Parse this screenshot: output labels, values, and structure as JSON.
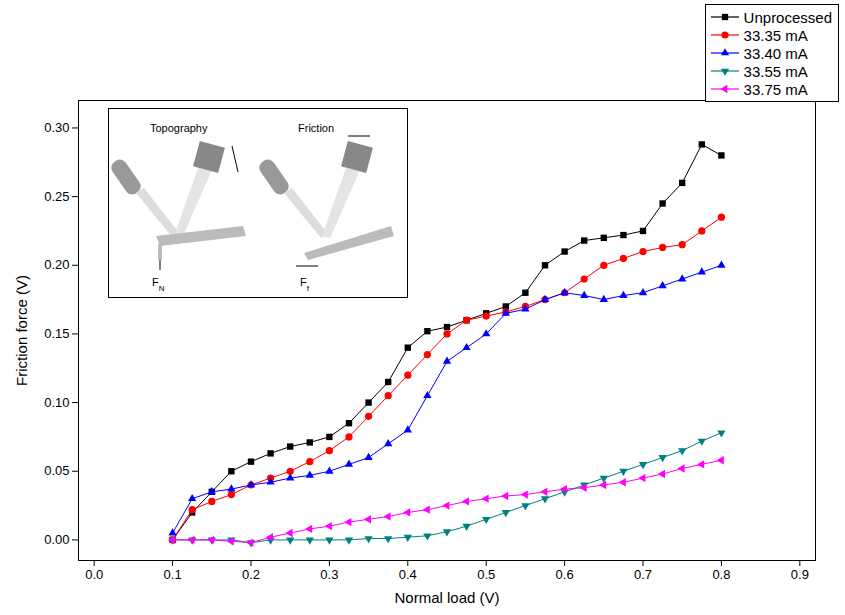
{
  "chart_data": {
    "type": "line",
    "x_label": "Normal load (V)",
    "y_label": "Friction force (V)",
    "xlim": [
      -0.02,
      0.92
    ],
    "ylim": [
      -0.015,
      0.32
    ],
    "xticks": [
      {
        "value": 0,
        "label": "0.0"
      },
      0.1,
      0.2,
      0.3,
      0.4,
      0.5,
      0.6,
      0.7,
      0.8,
      0.9
    ],
    "yticks": [
      {
        "value": 0,
        "label": "0.00"
      },
      0.05,
      {
        "value": 0.1,
        "label": "0.10"
      },
      0.15,
      {
        "value": 0.2,
        "label": "0.20"
      },
      0.25,
      {
        "value": 0.3,
        "label": "0.30"
      }
    ],
    "grid": false,
    "legend": "top-right",
    "x": [
      0.1,
      0.125,
      0.15,
      0.175,
      0.2,
      0.225,
      0.25,
      0.275,
      0.3,
      0.325,
      0.35,
      0.375,
      0.4,
      0.425,
      0.45,
      0.475,
      0.5,
      0.525,
      0.55,
      0.575,
      0.6,
      0.625,
      0.65,
      0.675,
      0.7,
      0.725,
      0.75,
      0.775,
      0.8
    ],
    "series": [
      {
        "name": "Unprocessed",
        "color": "#000000",
        "marker": "square",
        "values": [
          0.0,
          0.02,
          0.035,
          0.05,
          0.057,
          0.063,
          0.068,
          0.071,
          0.075,
          0.085,
          0.1,
          0.115,
          0.14,
          0.152,
          0.155,
          0.16,
          0.165,
          0.17,
          0.18,
          0.2,
          0.21,
          0.218,
          0.22,
          0.222,
          0.225,
          0.245,
          0.26,
          0.288,
          0.28
        ]
      },
      {
        "name": "33.35 mA",
        "color": "#ff0000",
        "marker": "circle",
        "values": [
          0.0,
          0.022,
          0.028,
          0.033,
          0.04,
          0.045,
          0.05,
          0.057,
          0.065,
          0.075,
          0.09,
          0.105,
          0.12,
          0.135,
          0.15,
          0.16,
          0.163,
          0.166,
          0.17,
          0.175,
          0.18,
          0.19,
          0.2,
          0.205,
          0.21,
          0.213,
          0.215,
          0.225,
          0.235
        ]
      },
      {
        "name": "33.40 mA",
        "color": "#0000ff",
        "marker": "triangle",
        "values": [
          0.005,
          0.03,
          0.035,
          0.037,
          0.04,
          0.042,
          0.045,
          0.047,
          0.05,
          0.055,
          0.06,
          0.07,
          0.08,
          0.105,
          0.13,
          0.14,
          0.15,
          0.165,
          0.168,
          0.175,
          0.18,
          0.178,
          0.175,
          0.178,
          0.18,
          0.185,
          0.19,
          0.195,
          0.2
        ]
      },
      {
        "name": "33.55 mA",
        "color": "#008080",
        "marker": "triangle-down",
        "values": [
          0.0,
          0.0,
          0.0,
          0.0,
          -0.002,
          0.0,
          0.0,
          0.0,
          0.0,
          0.0,
          0.001,
          0.001,
          0.002,
          0.003,
          0.006,
          0.01,
          0.015,
          0.02,
          0.025,
          0.03,
          0.035,
          0.04,
          0.045,
          0.05,
          0.055,
          0.06,
          0.065,
          0.072,
          0.078
        ]
      },
      {
        "name": "33.75 mA",
        "color": "#ff00ff",
        "marker": "triangle-left",
        "values": [
          0.0,
          0.0,
          0.0,
          -0.001,
          -0.002,
          0.002,
          0.005,
          0.008,
          0.01,
          0.013,
          0.015,
          0.017,
          0.02,
          0.022,
          0.025,
          0.028,
          0.03,
          0.032,
          0.033,
          0.035,
          0.037,
          0.038,
          0.04,
          0.042,
          0.045,
          0.048,
          0.052,
          0.055,
          0.058
        ]
      }
    ],
    "annotations": [
      {
        "text": "Topography"
      },
      {
        "text": "Friction"
      },
      {
        "text": "F",
        "subscript": "N"
      },
      {
        "text": "F",
        "subscript": "f"
      }
    ]
  }
}
